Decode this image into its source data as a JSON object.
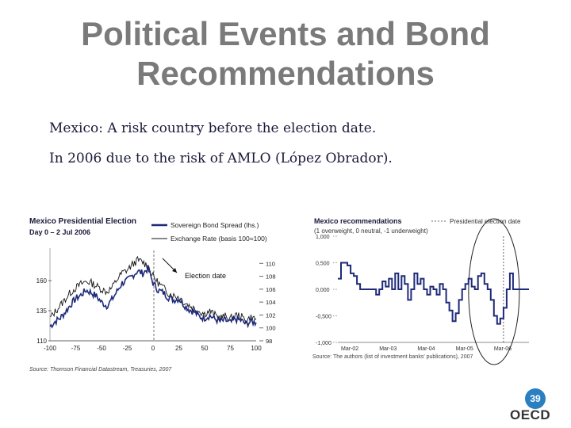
{
  "slide": {
    "title_line1": "Political Events and Bond",
    "title_line2": "Recommendations",
    "line1": "Mexico:  A risk country before the election date.",
    "line2": "In 2006 due to the risk of AMLO (López Obrador).",
    "page_number": "39",
    "logo_text": "OECD"
  },
  "colors": {
    "title": "#7a7a7a",
    "bond_series": "#1e2a78",
    "fx_series": "#111111",
    "badge": "#2a7fc1"
  },
  "chart_data": [
    {
      "type": "line",
      "title": "Mexico Presidential Election",
      "subtitle": "Day 0 – 2 Jul 2006",
      "legend": [
        "Sovereign Bond Spread (lhs.)",
        "Exchange Rate (basis 100=100)"
      ],
      "annotation": "Election date",
      "x_ticks": [
        "-100",
        "-75",
        "-50",
        "-25",
        "0",
        "25",
        "50",
        "75",
        "100"
      ],
      "y_left_ticks": [
        "110",
        "135",
        "160"
      ],
      "y_right_ticks": [
        "98",
        "100",
        "102",
        "104",
        "106",
        "108",
        "110"
      ],
      "xlim": [
        -100,
        100
      ],
      "ylim_left": [
        110,
        185
      ],
      "ylim_right": [
        98,
        112
      ],
      "source": "Source: Thomson Financial Datastream, Treasuries, 2007",
      "series": [
        {
          "name": "Sovereign Bond Spread (lhs.)",
          "x": [
            -100,
            -95,
            -90,
            -85,
            -80,
            -75,
            -70,
            -65,
            -60,
            -55,
            -50,
            -45,
            -40,
            -35,
            -30,
            -25,
            -20,
            -15,
            -10,
            -5,
            0,
            5,
            10,
            15,
            20,
            25,
            30,
            35,
            40,
            45,
            50,
            55,
            60,
            65,
            70,
            75,
            80,
            85,
            90,
            95,
            100
          ],
          "values": [
            122,
            126,
            129,
            134,
            140,
            145,
            148,
            152,
            150,
            147,
            142,
            139,
            144,
            151,
            158,
            160,
            164,
            168,
            166,
            170,
            158,
            152,
            150,
            146,
            144,
            145,
            140,
            136,
            134,
            130,
            129,
            131,
            128,
            126,
            127,
            125,
            128,
            127,
            124,
            126,
            125
          ]
        },
        {
          "name": "Exchange Rate (basis 100=100)",
          "x": [
            -100,
            -95,
            -90,
            -85,
            -80,
            -75,
            -70,
            -65,
            -60,
            -55,
            -50,
            -45,
            -40,
            -35,
            -30,
            -25,
            -20,
            -15,
            -10,
            -5,
            0,
            5,
            10,
            15,
            20,
            25,
            30,
            35,
            40,
            45,
            50,
            55,
            60,
            65,
            70,
            75,
            80,
            85,
            90,
            95,
            100
          ],
          "values": [
            101.5,
            102.5,
            103.5,
            104.5,
            105.5,
            106.2,
            106.8,
            107.2,
            107.0,
            106.5,
            106.0,
            105.6,
            106.2,
            107.5,
            108.5,
            109.0,
            109.8,
            110.5,
            110.2,
            109.6,
            108.0,
            107.0,
            106.2,
            105.4,
            105.0,
            104.8,
            104.0,
            103.5,
            103.0,
            102.6,
            102.2,
            102.6,
            102.0,
            101.6,
            101.8,
            101.4,
            102.0,
            101.8,
            101.2,
            101.6,
            101.4
          ]
        }
      ]
    },
    {
      "type": "line",
      "title": "Mexico recommendations",
      "subtitle": "(1 overweight, 0 neutral, -1 underweight)",
      "legend": [
        "Presidential election date"
      ],
      "x_ticks": [
        "Mar-02",
        "Mar-03",
        "Mar-04",
        "Mar-05",
        "Mar-06"
      ],
      "y_ticks": [
        "1,000",
        "0,500",
        "0,000",
        "-0,500",
        "-1,000"
      ],
      "xlim": [
        0,
        60
      ],
      "ylim": [
        -1.0,
        1.0
      ],
      "election_index": 52,
      "source": "Source: The authors (list of investment banks' publications), 2007",
      "series": [
        {
          "name": "Recommendation",
          "x": [
            0,
            1,
            2,
            3,
            4,
            5,
            6,
            7,
            8,
            9,
            10,
            11,
            12,
            13,
            14,
            15,
            16,
            17,
            18,
            19,
            20,
            21,
            22,
            23,
            24,
            25,
            26,
            27,
            28,
            29,
            30,
            31,
            32,
            33,
            34,
            35,
            36,
            37,
            38,
            39,
            40,
            41,
            42,
            43,
            44,
            45,
            46,
            47,
            48,
            49,
            50,
            51,
            52,
            53,
            54,
            55,
            56,
            57,
            58,
            59,
            60
          ],
          "values": [
            0.2,
            0.5,
            0.5,
            0.45,
            0.3,
            0.25,
            0.1,
            0.0,
            0.0,
            0.0,
            0.0,
            0.0,
            -0.1,
            0.0,
            0.15,
            0.05,
            0.2,
            0.0,
            0.3,
            0.0,
            0.25,
            0.1,
            -0.2,
            0.0,
            0.3,
            0.1,
            0.2,
            0.0,
            -0.1,
            0.05,
            0.0,
            -0.1,
            0.1,
            0.0,
            -0.25,
            -0.4,
            -0.6,
            -0.45,
            -0.2,
            0.0,
            0.1,
            0.2,
            0.05,
            0.0,
            0.25,
            0.3,
            0.1,
            0.0,
            -0.2,
            -0.5,
            -0.65,
            -0.55,
            -0.35,
            0.0,
            0.3,
            0.0,
            0.0,
            0.0,
            0.0,
            0.0,
            0.0
          ]
        }
      ]
    }
  ]
}
